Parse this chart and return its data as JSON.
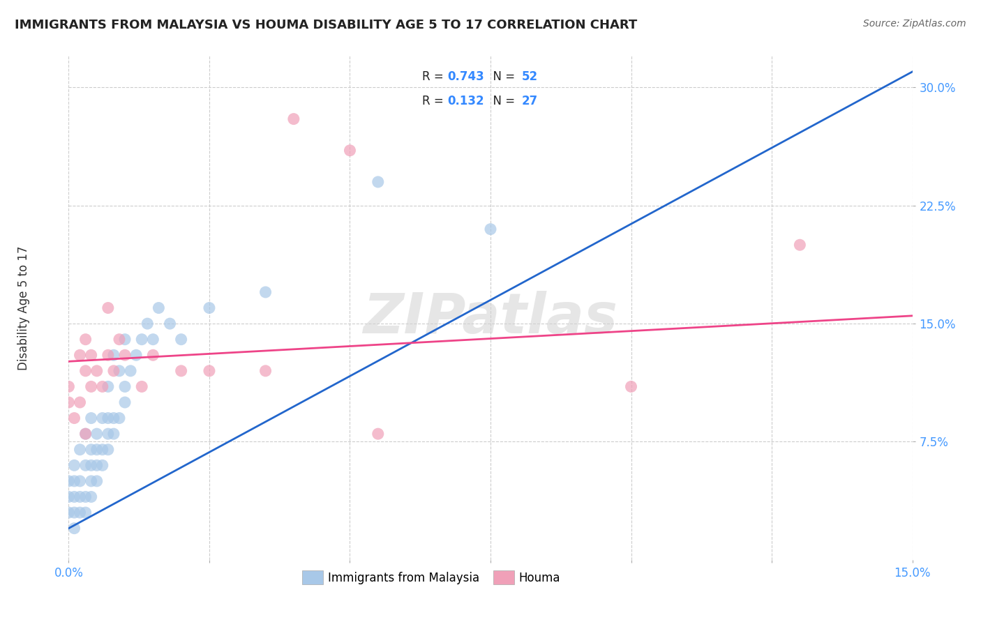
{
  "title": "IMMIGRANTS FROM MALAYSIA VS HOUMA DISABILITY AGE 5 TO 17 CORRELATION CHART",
  "source_text": "Source: ZipAtlas.com",
  "ylabel": "Disability Age 5 to 17",
  "xlim": [
    0.0,
    0.15
  ],
  "ylim": [
    0.0,
    0.32
  ],
  "xticks": [
    0.0,
    0.025,
    0.05,
    0.075,
    0.1,
    0.125,
    0.15
  ],
  "xticklabels": [
    "0.0%",
    "",
    "",
    "",
    "",
    "",
    "15.0%"
  ],
  "yticks": [
    0.075,
    0.15,
    0.225,
    0.3
  ],
  "yticklabels": [
    "7.5%",
    "15.0%",
    "22.5%",
    "30.0%"
  ],
  "blue_color": "#a8c8e8",
  "pink_color": "#f0a0b8",
  "blue_line_color": "#2266cc",
  "pink_line_color": "#ee4488",
  "watermark": "ZIPatlas",
  "background_color": "#FFFFFF",
  "grid_color": "#cccccc",
  "blue_line_x0": 0.0,
  "blue_line_y0": 0.02,
  "blue_line_x1": 0.15,
  "blue_line_y1": 0.31,
  "pink_line_x0": 0.0,
  "pink_line_y0": 0.126,
  "pink_line_x1": 0.15,
  "pink_line_y1": 0.155,
  "blue_scatter_x": [
    0.0,
    0.0,
    0.0,
    0.001,
    0.001,
    0.001,
    0.001,
    0.001,
    0.002,
    0.002,
    0.002,
    0.002,
    0.003,
    0.003,
    0.003,
    0.003,
    0.004,
    0.004,
    0.004,
    0.004,
    0.004,
    0.005,
    0.005,
    0.005,
    0.005,
    0.006,
    0.006,
    0.006,
    0.007,
    0.007,
    0.007,
    0.007,
    0.008,
    0.008,
    0.008,
    0.009,
    0.009,
    0.01,
    0.01,
    0.01,
    0.011,
    0.012,
    0.013,
    0.014,
    0.015,
    0.016,
    0.018,
    0.02,
    0.025,
    0.035,
    0.055,
    0.075
  ],
  "blue_scatter_y": [
    0.03,
    0.04,
    0.05,
    0.02,
    0.03,
    0.04,
    0.05,
    0.06,
    0.03,
    0.04,
    0.05,
    0.07,
    0.03,
    0.04,
    0.06,
    0.08,
    0.04,
    0.05,
    0.06,
    0.07,
    0.09,
    0.05,
    0.06,
    0.07,
    0.08,
    0.06,
    0.07,
    0.09,
    0.07,
    0.08,
    0.09,
    0.11,
    0.08,
    0.09,
    0.13,
    0.09,
    0.12,
    0.1,
    0.11,
    0.14,
    0.12,
    0.13,
    0.14,
    0.15,
    0.14,
    0.16,
    0.15,
    0.14,
    0.16,
    0.17,
    0.24,
    0.21
  ],
  "pink_scatter_x": [
    0.0,
    0.0,
    0.001,
    0.002,
    0.002,
    0.003,
    0.003,
    0.003,
    0.004,
    0.004,
    0.005,
    0.006,
    0.007,
    0.007,
    0.008,
    0.009,
    0.01,
    0.013,
    0.015,
    0.02,
    0.025,
    0.035,
    0.04,
    0.05,
    0.055,
    0.1,
    0.13
  ],
  "pink_scatter_y": [
    0.1,
    0.11,
    0.09,
    0.1,
    0.13,
    0.08,
    0.12,
    0.14,
    0.11,
    0.13,
    0.12,
    0.11,
    0.13,
    0.16,
    0.12,
    0.14,
    0.13,
    0.11,
    0.13,
    0.12,
    0.12,
    0.12,
    0.28,
    0.26,
    0.08,
    0.11,
    0.2
  ]
}
